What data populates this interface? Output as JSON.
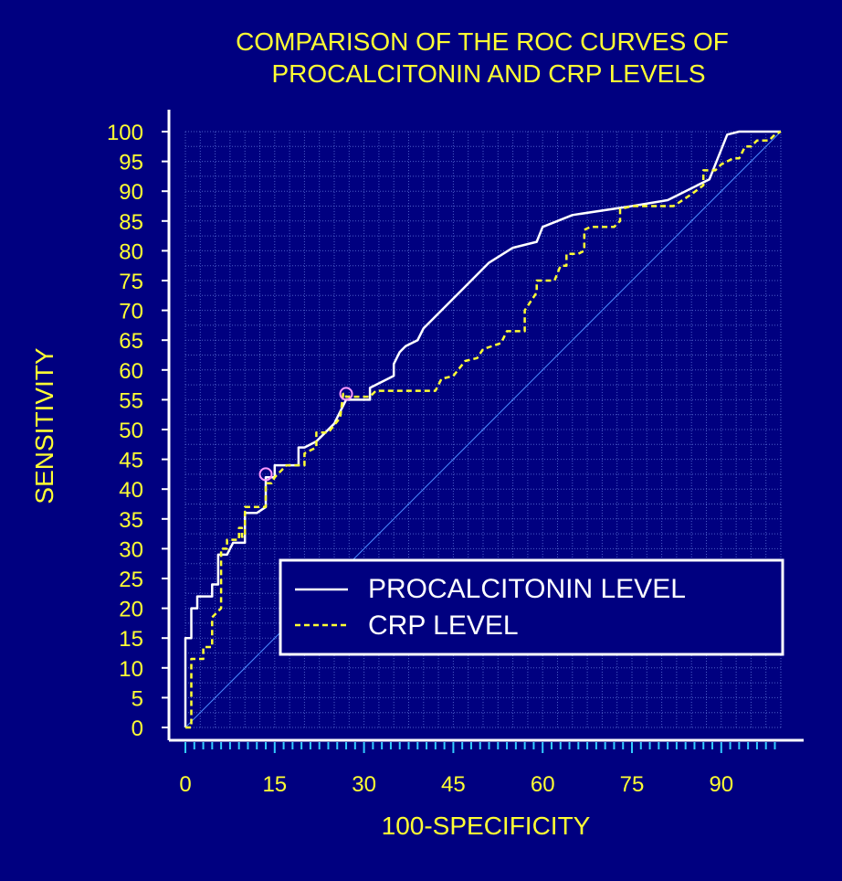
{
  "chart_data": {
    "type": "line",
    "title_lines": [
      "COMPARISON OF THE ROC CURVES OF",
      "PROCALCITONIN AND CRP LEVELS"
    ],
    "xlabel": "100-SPECIFICITY",
    "ylabel": "SENSITIVITY",
    "xlim": [
      0,
      100
    ],
    "ylim": [
      0,
      100
    ],
    "x_ticks": [
      0,
      15,
      30,
      45,
      60,
      75,
      90
    ],
    "y_ticks": [
      0,
      5,
      10,
      15,
      20,
      25,
      30,
      35,
      40,
      45,
      50,
      55,
      60,
      65,
      70,
      75,
      80,
      85,
      90,
      95,
      100
    ],
    "grid": true,
    "legend_position": "lower-right",
    "diagonal_reference": true,
    "colors": {
      "background": "#000080",
      "text": "#FFFF33",
      "axis": "#FFFFFF",
      "minor_ticks": "#33CCFF",
      "grid": "#5A6FD6",
      "diagonal": "#4C8CFF",
      "marker": "#FF99FF"
    },
    "series": [
      {
        "name": "PROCALCITONIN LEVEL",
        "style": "solid",
        "color": "#FFFFFF",
        "points": [
          [
            0,
            0
          ],
          [
            0,
            15
          ],
          [
            1,
            15
          ],
          [
            1,
            20
          ],
          [
            2,
            20
          ],
          [
            2,
            22
          ],
          [
            4.5,
            22
          ],
          [
            4.5,
            24
          ],
          [
            5.5,
            24
          ],
          [
            5.5,
            29
          ],
          [
            7,
            29
          ],
          [
            8,
            31
          ],
          [
            10,
            31
          ],
          [
            10,
            36
          ],
          [
            12,
            36
          ],
          [
            13.5,
            37
          ],
          [
            13.5,
            42
          ],
          [
            15,
            42
          ],
          [
            15,
            44
          ],
          [
            17,
            44
          ],
          [
            19,
            44
          ],
          [
            19,
            47
          ],
          [
            20,
            47
          ],
          [
            22,
            48
          ],
          [
            23,
            49
          ],
          [
            25,
            51
          ],
          [
            26,
            53
          ],
          [
            27,
            55
          ],
          [
            29,
            55
          ],
          [
            31,
            55
          ],
          [
            31,
            57
          ],
          [
            35,
            59
          ],
          [
            35,
            61
          ],
          [
            36,
            63
          ],
          [
            37,
            64
          ],
          [
            39,
            65
          ],
          [
            40,
            67
          ],
          [
            45,
            72
          ],
          [
            51,
            78
          ],
          [
            55,
            80.5
          ],
          [
            59,
            81.5
          ],
          [
            60,
            84
          ],
          [
            65,
            86
          ],
          [
            75,
            87.5
          ],
          [
            81,
            88.5
          ],
          [
            88,
            92
          ],
          [
            91,
            99.5
          ],
          [
            93,
            100
          ],
          [
            100,
            100
          ]
        ]
      },
      {
        "name": "CRP LEVEL",
        "style": "dashed",
        "color": "#FFFF33",
        "points": [
          [
            0,
            0
          ],
          [
            1,
            0
          ],
          [
            1,
            11.5
          ],
          [
            3,
            11.5
          ],
          [
            3,
            13.5
          ],
          [
            4.5,
            13.5
          ],
          [
            4.5,
            18.5
          ],
          [
            6,
            20
          ],
          [
            6,
            30
          ],
          [
            7,
            30
          ],
          [
            7,
            31.5
          ],
          [
            9,
            31.5
          ],
          [
            9,
            33.5
          ],
          [
            9.5,
            33.5
          ],
          [
            9.5,
            32
          ],
          [
            10,
            32
          ],
          [
            10,
            37
          ],
          [
            13.5,
            37
          ],
          [
            13.5,
            41
          ],
          [
            14.5,
            41
          ],
          [
            15,
            42
          ],
          [
            16,
            43
          ],
          [
            17,
            44
          ],
          [
            20,
            44
          ],
          [
            20,
            46
          ],
          [
            21,
            46.5
          ],
          [
            22,
            47
          ],
          [
            22,
            49.5
          ],
          [
            24,
            49.5
          ],
          [
            26,
            52
          ],
          [
            26.5,
            56
          ],
          [
            27,
            56
          ],
          [
            27,
            55.5
          ],
          [
            31,
            55.5
          ],
          [
            32,
            56.5
          ],
          [
            42,
            56.5
          ],
          [
            43,
            58.5
          ],
          [
            45,
            59
          ],
          [
            47,
            61.5
          ],
          [
            49,
            62
          ],
          [
            50,
            63.5
          ],
          [
            53,
            64.5
          ],
          [
            54,
            66.5
          ],
          [
            57,
            66.5
          ],
          [
            57,
            70
          ],
          [
            59,
            73
          ],
          [
            59,
            75
          ],
          [
            62,
            75
          ],
          [
            63,
            77.5
          ],
          [
            64,
            77.5
          ],
          [
            64,
            79.5
          ],
          [
            66,
            79.5
          ],
          [
            67,
            80
          ],
          [
            67,
            83.5
          ],
          [
            68,
            84
          ],
          [
            72,
            84
          ],
          [
            73,
            85
          ],
          [
            73,
            87
          ],
          [
            75,
            87.5
          ],
          [
            77,
            87.5
          ],
          [
            82,
            87.5
          ],
          [
            85,
            89.5
          ],
          [
            87,
            91
          ],
          [
            87,
            93.5
          ],
          [
            89,
            93.5
          ],
          [
            90,
            94.5
          ],
          [
            91,
            95
          ],
          [
            92,
            95.5
          ],
          [
            93,
            95.5
          ],
          [
            94,
            97.5
          ],
          [
            95,
            97.5
          ],
          [
            96,
            98.5
          ],
          [
            98,
            98.5
          ],
          [
            99,
            99.5
          ],
          [
            100,
            100
          ]
        ]
      }
    ],
    "markers": [
      {
        "x": 13.5,
        "y": 42.5
      },
      {
        "x": 27,
        "y": 56
      }
    ]
  }
}
